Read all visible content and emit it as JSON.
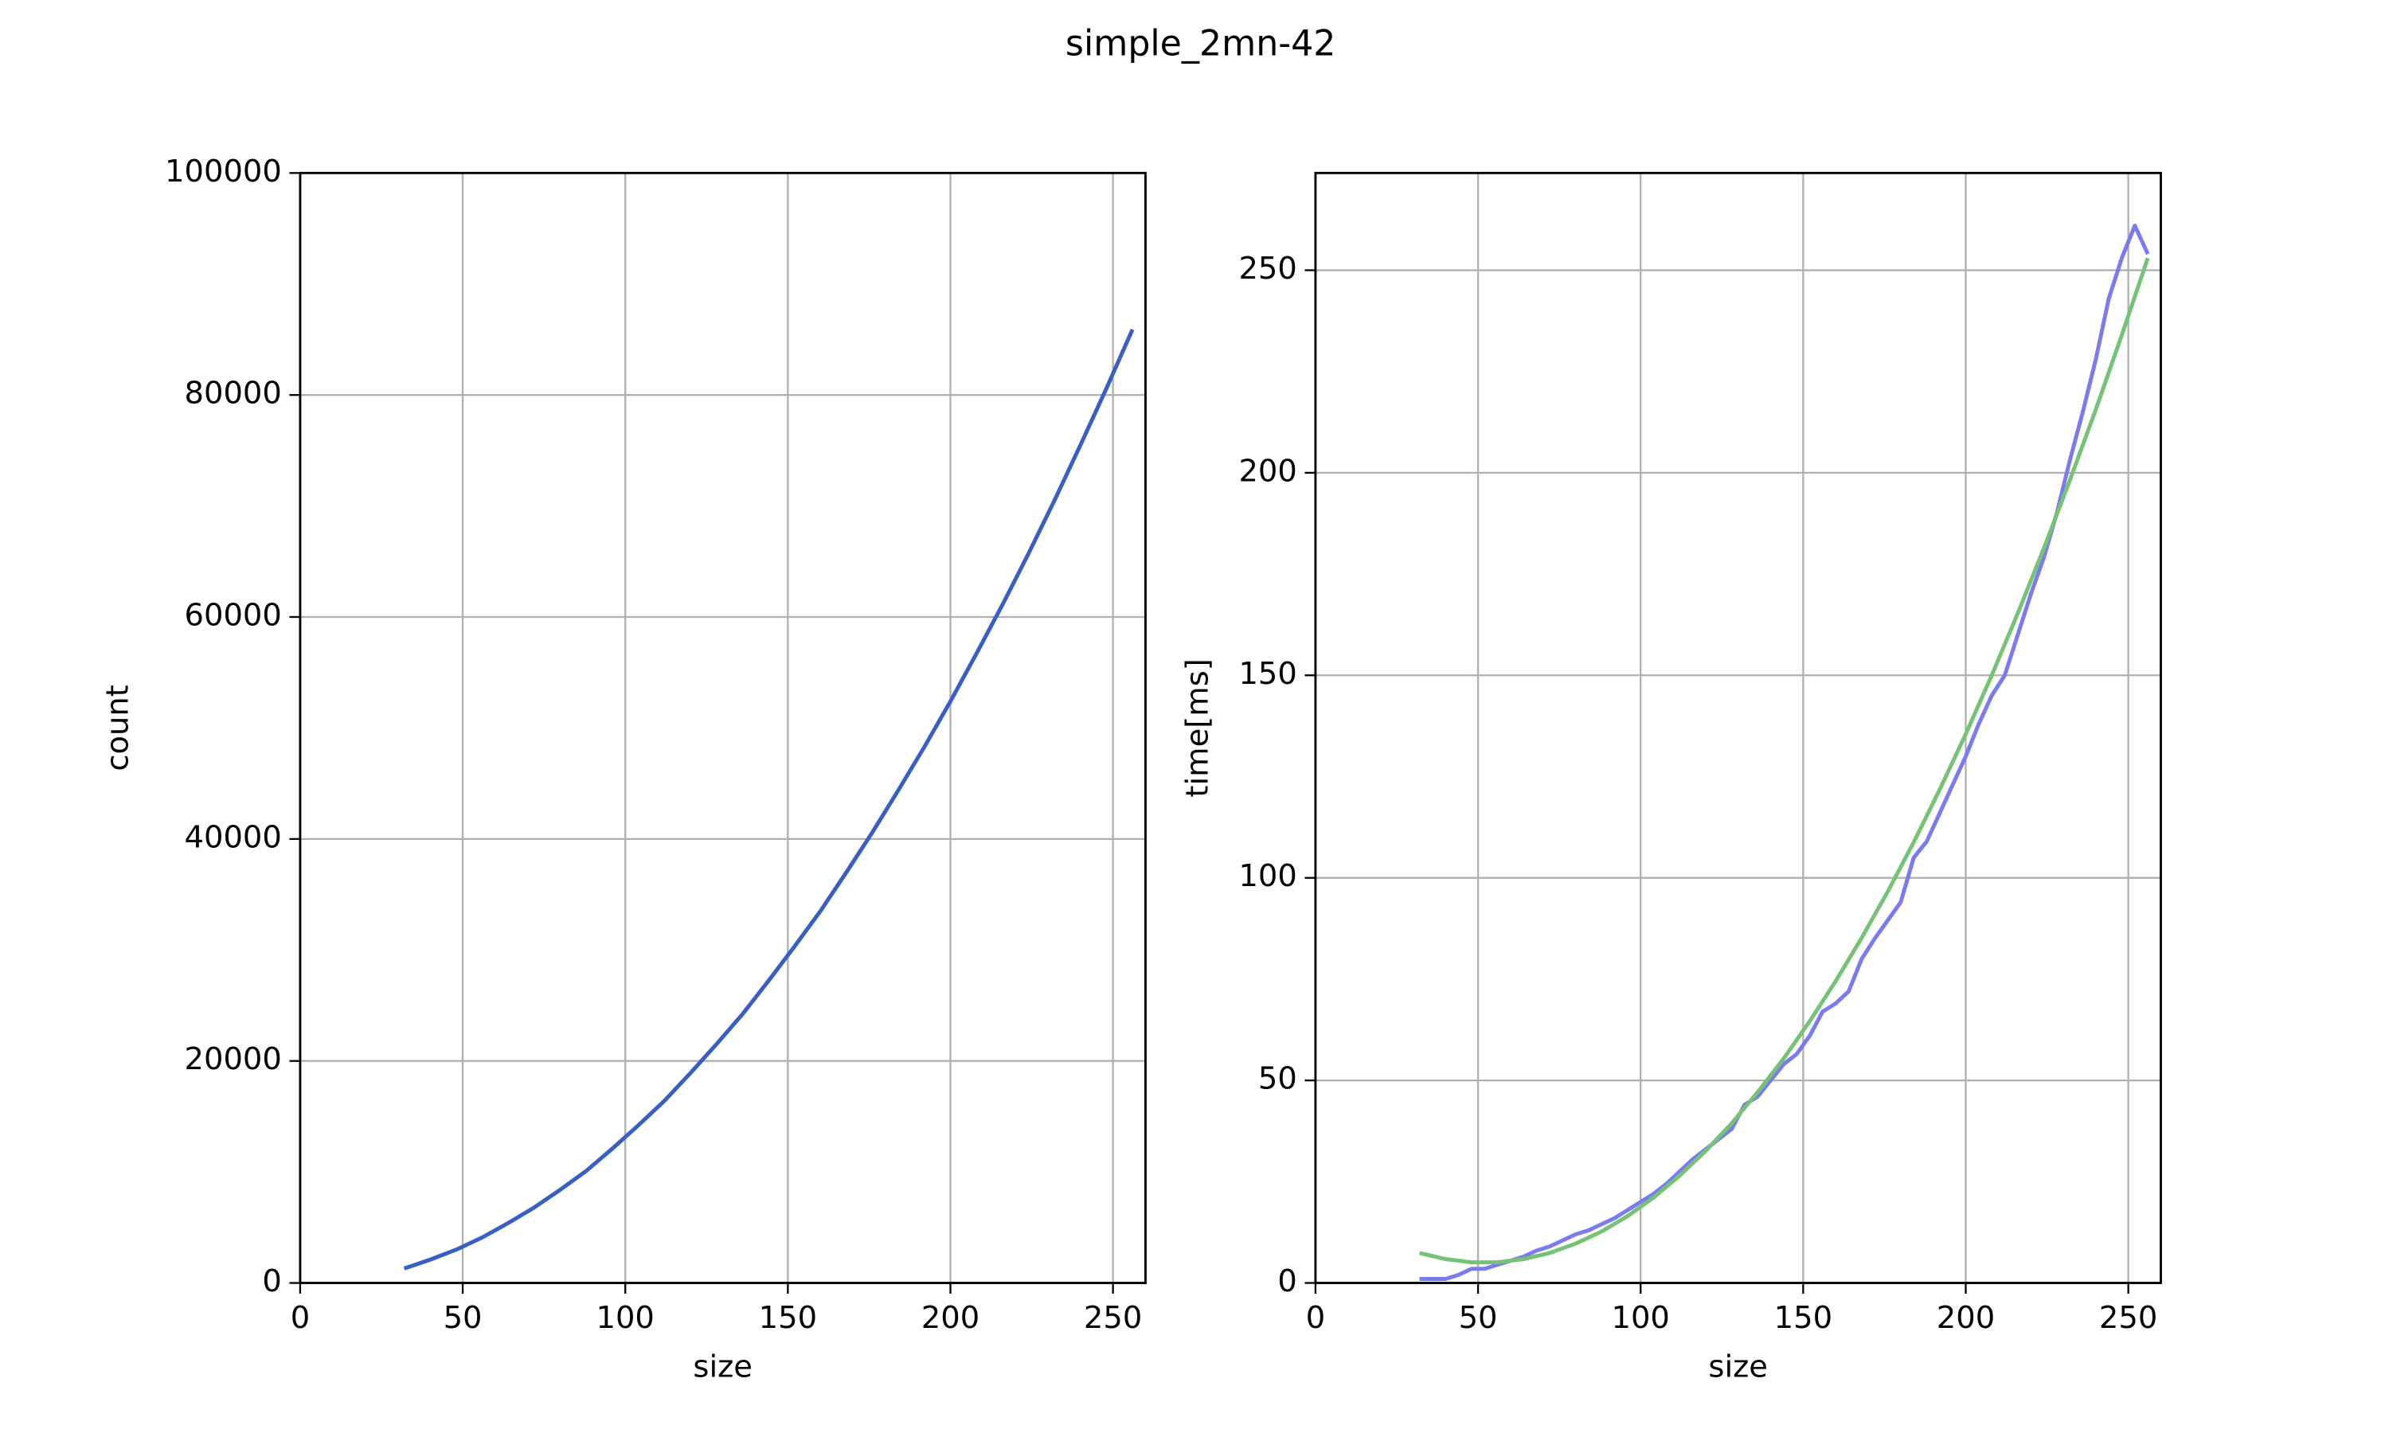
{
  "title": "simple_2mn-42",
  "chart_data": [
    {
      "type": "line",
      "xlabel": "size",
      "ylabel": "count",
      "xlim": [
        0,
        260
      ],
      "xticks": [
        0,
        50,
        100,
        150,
        200,
        250
      ],
      "ylim": [
        0,
        100000
      ],
      "yticks": [
        0,
        20000,
        40000,
        60000,
        80000,
        100000
      ],
      "grid": true,
      "series": [
        {
          "color": "#3a5fc2",
          "x": [
            32,
            40,
            48,
            56,
            64,
            72,
            80,
            88,
            96,
            104,
            112,
            120,
            128,
            136,
            144,
            152,
            160,
            168,
            176,
            184,
            192,
            200,
            208,
            216,
            224,
            232,
            240,
            248,
            256
          ],
          "values": [
            1300,
            2100,
            3000,
            4100,
            5400,
            6800,
            8400,
            10100,
            12100,
            14200,
            16400,
            18900,
            21500,
            24200,
            27200,
            30300,
            33500,
            37000,
            40600,
            44400,
            48300,
            52400,
            56700,
            61100,
            65700,
            70500,
            75500,
            80600,
            85900
          ]
        }
      ]
    },
    {
      "type": "line",
      "xlabel": "size",
      "ylabel": "time[ms]",
      "xlim": [
        0,
        260
      ],
      "xticks": [
        0,
        50,
        100,
        150,
        200,
        250
      ],
      "ylim": [
        0,
        274
      ],
      "yticks": [
        0,
        50,
        100,
        150,
        200,
        250
      ],
      "grid": true,
      "series": [
        {
          "color": "#7b7bf0",
          "x": [
            32,
            36,
            40,
            44,
            48,
            52,
            56,
            60,
            64,
            68,
            72,
            76,
            80,
            84,
            88,
            92,
            96,
            100,
            104,
            108,
            112,
            116,
            120,
            124,
            128,
            132,
            136,
            140,
            144,
            148,
            152,
            156,
            160,
            164,
            168,
            172,
            176,
            180,
            184,
            188,
            192,
            196,
            200,
            204,
            208,
            212,
            216,
            220,
            224,
            228,
            232,
            236,
            240,
            244,
            248,
            252,
            256
          ],
          "values": [
            1,
            1,
            1,
            2,
            3.5,
            3.5,
            4.5,
            5.5,
            6.5,
            8,
            9,
            10.5,
            12,
            13,
            14.5,
            16,
            18,
            20,
            22,
            24.5,
            27.5,
            30.5,
            33,
            35.5,
            38,
            44,
            46,
            50,
            54,
            56.5,
            61,
            67,
            69,
            72,
            80,
            85,
            89.5,
            94,
            105,
            109,
            116,
            123,
            130,
            138,
            145,
            150,
            160,
            170,
            179,
            190,
            203,
            215,
            228,
            243,
            253,
            261,
            254
          ]
        },
        {
          "color": "#76c276",
          "x": [
            32,
            40,
            48,
            56,
            64,
            72,
            80,
            88,
            96,
            104,
            112,
            120,
            128,
            136,
            144,
            152,
            160,
            168,
            176,
            184,
            192,
            200,
            208,
            216,
            224,
            232,
            240,
            248,
            256
          ],
          "values": [
            7.4,
            5.9,
            5.1,
            5.1,
            5.9,
            7.4,
            9.7,
            12.7,
            16.5,
            21.1,
            26.5,
            32.6,
            39.4,
            47.1,
            55.4,
            64.6,
            74.5,
            85.2,
            96.6,
            108.8,
            121.8,
            135.5,
            150,
            165.3,
            181.3,
            198.1,
            215.6,
            234,
            253
          ]
        }
      ]
    }
  ]
}
